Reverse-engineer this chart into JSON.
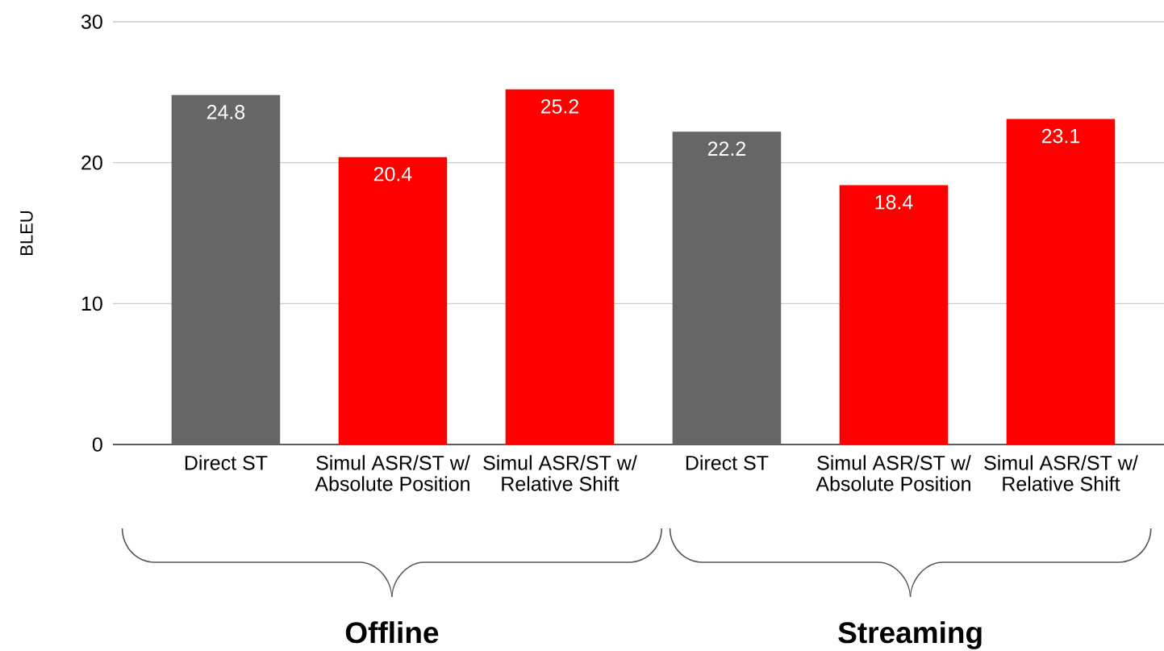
{
  "chart_data": {
    "type": "bar",
    "ylabel": "BLEU",
    "categories": [
      "Direct ST",
      "Simul ASR/ST w/ Absolute Position",
      "Simul ASR/ST w/ Relative Shift",
      "Direct ST",
      "Simul ASR/ST w/ Absolute Position",
      "Simul ASR/ST w/ Relative Shift"
    ],
    "values": [
      24.8,
      20.4,
      25.2,
      22.2,
      18.4,
      23.1
    ],
    "colors": [
      "#666666",
      "#ff0000",
      "#ff0000",
      "#666666",
      "#ff0000",
      "#ff0000"
    ],
    "ylim": [
      0,
      30
    ],
    "yticks": [
      0,
      10,
      20,
      30
    ],
    "grid": "y",
    "data_labels": true,
    "annotations": [
      "Offline",
      "Streaming"
    ]
  }
}
